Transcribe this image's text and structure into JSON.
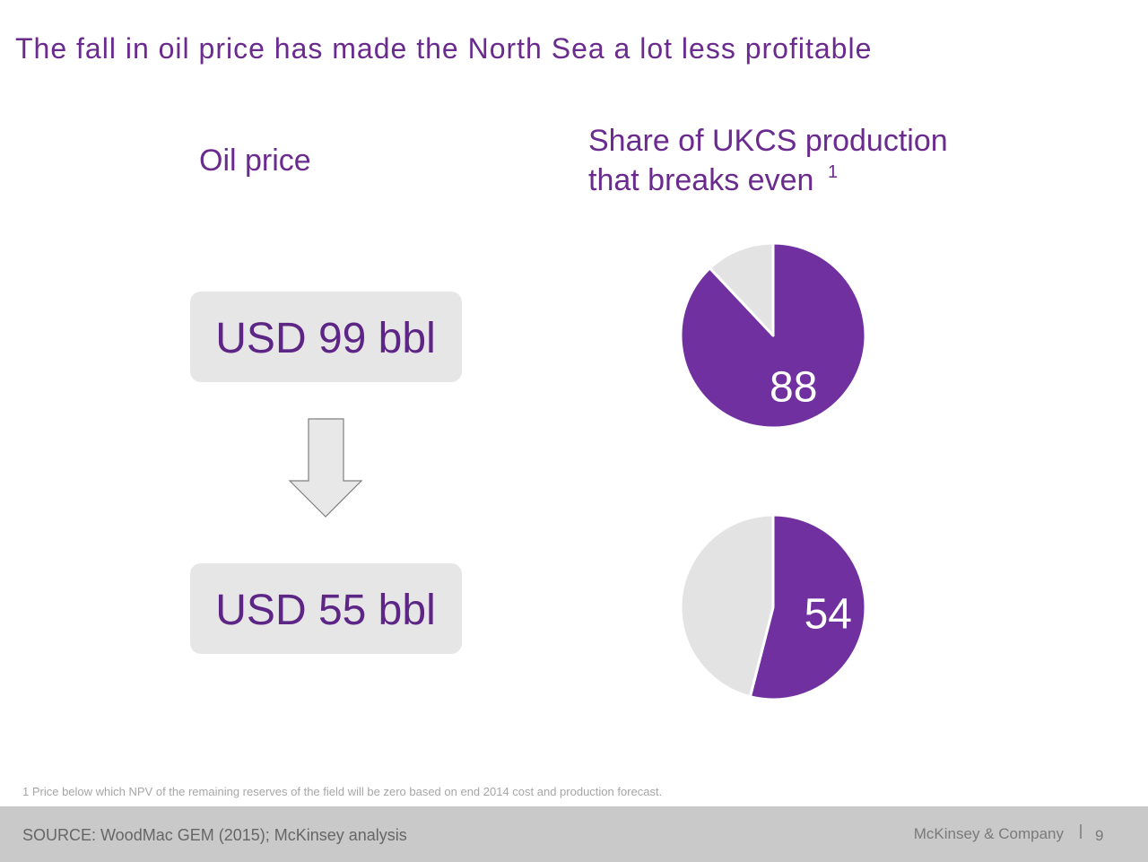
{
  "title": "The fall in oil price has made the North Sea a lot less profitable",
  "left_heading": "Oil price",
  "right_heading": {
    "line1": "Share of UKCS production",
    "line2": "that breaks even",
    "footnote_mark": "1"
  },
  "prices": [
    "USD 99 bbl",
    "USD 55 bbl"
  ],
  "chart_data": [
    {
      "type": "pie",
      "values": [
        88,
        12
      ],
      "colors": [
        "#7030a0",
        "#e3e3e4"
      ]
    },
    {
      "type": "pie",
      "values": [
        54,
        46
      ],
      "colors": [
        "#7030a0",
        "#e3e3e4"
      ]
    }
  ],
  "footnote": "1 Price below which NPV of the remaining reserves of the field will be zero based on end 2014 cost and production forecast.",
  "source": "SOURCE: WoodMac GEM (2015); McKinsey analysis",
  "company": "McKinsey & Company",
  "page_number": "9"
}
